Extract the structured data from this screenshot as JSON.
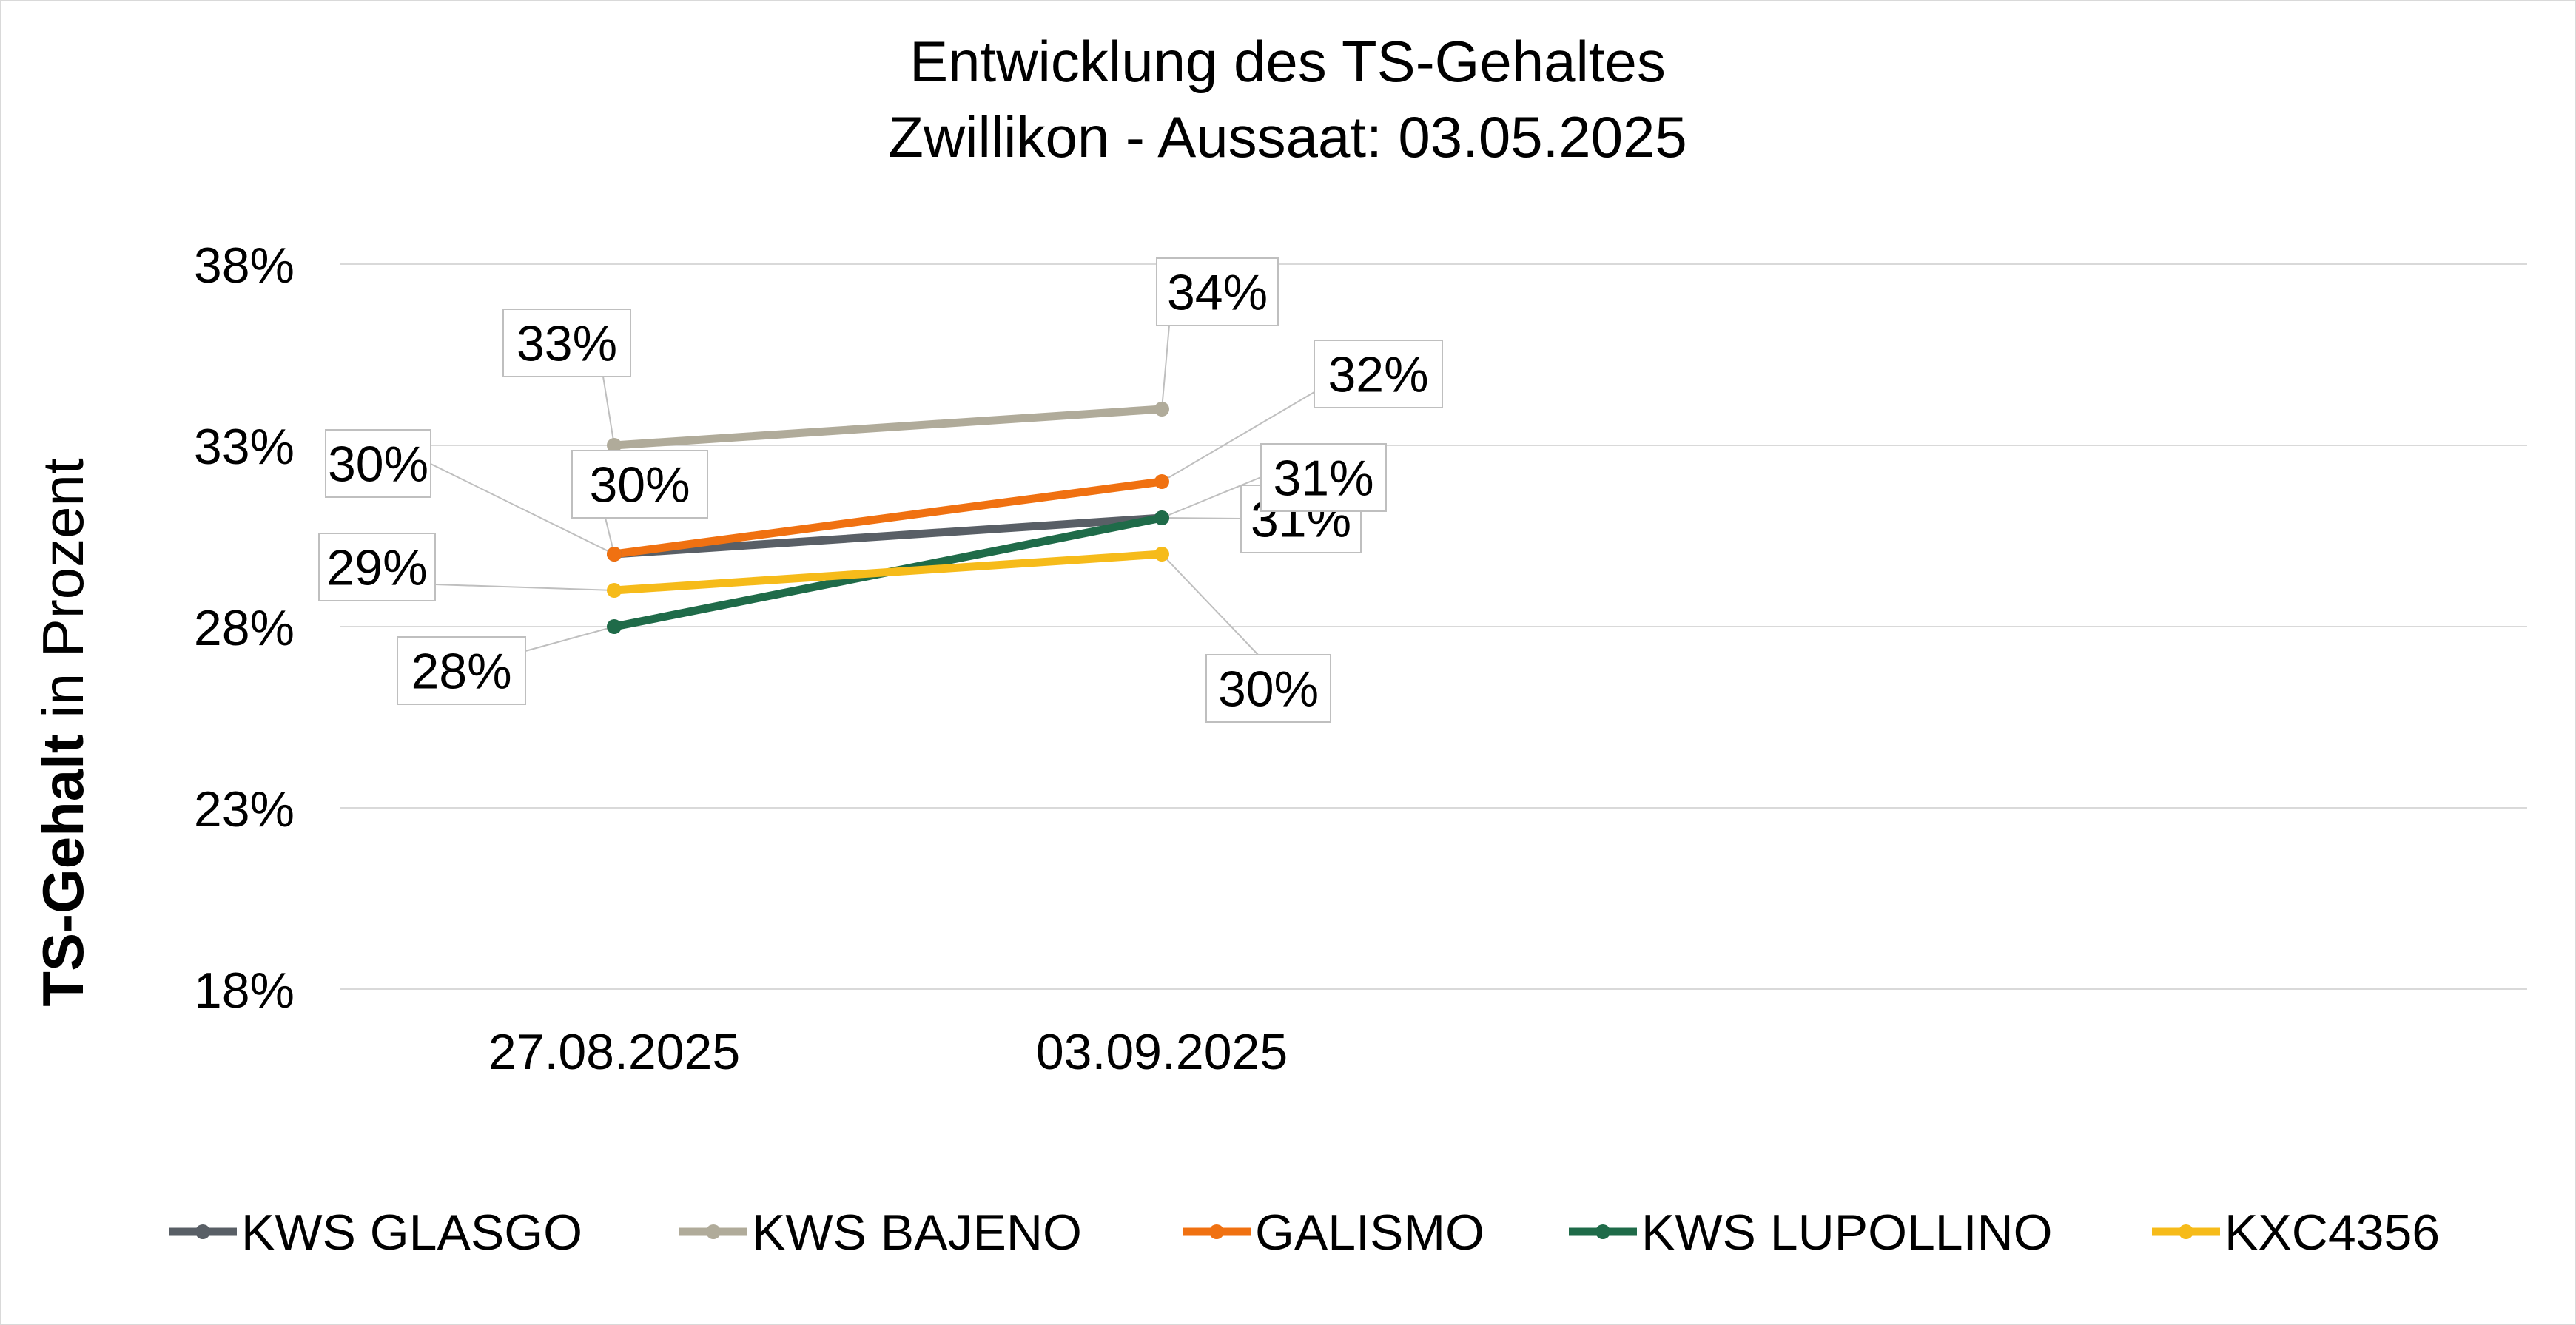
{
  "chart_data": {
    "type": "line",
    "title_line1": "Entwicklung des TS-Gehaltes",
    "title_line2": "Zwillikon - Aussaat: 03.05.2025",
    "ylabel_bold": "TS-Gehalt",
    "ylabel_rest": " in Prozent",
    "xlabel": "",
    "ylim": [
      18,
      38
    ],
    "yticks": [
      18,
      23,
      28,
      33,
      38
    ],
    "ytick_labels": [
      "18%",
      "23%",
      "28%",
      "33%",
      "38%"
    ],
    "categories": [
      "27.08.2025",
      "03.09.2025"
    ],
    "grid": true,
    "legend_position": "bottom",
    "series": [
      {
        "name": "KWS GLASGO",
        "color": "#595f66",
        "values": [
          30,
          31
        ],
        "labels": [
          "30%",
          "31%"
        ]
      },
      {
        "name": "KWS BAJENO",
        "color": "#b0ab9a",
        "values": [
          33,
          34
        ],
        "labels": [
          "33%",
          "34%"
        ]
      },
      {
        "name": "GALISMO",
        "color": "#f07111",
        "values": [
          30,
          32
        ],
        "labels": [
          "30%",
          "32%"
        ]
      },
      {
        "name": "KWS LUPOLLINO",
        "color": "#1f6b49",
        "values": [
          28,
          31
        ],
        "labels": [
          "28%",
          "31%"
        ]
      },
      {
        "name": "KXC4356",
        "color": "#f6bb1a",
        "values": [
          29,
          30
        ],
        "labels": [
          "29%",
          "30%"
        ]
      }
    ]
  }
}
